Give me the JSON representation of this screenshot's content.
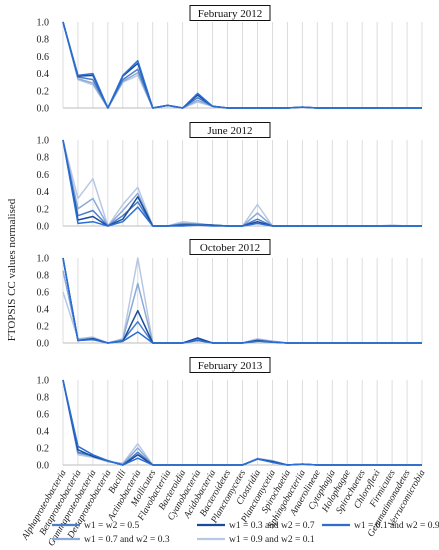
{
  "chart_data": {
    "type": "line",
    "ylabel": "FTOPSIS CC values normalised",
    "categories": [
      "Alphaproteobacteria",
      "Betaproteobacteria",
      "Gammaproteobacteria",
      "Deltaproteobacteria",
      "Bacilli",
      "Actinobacteria",
      "Mollicutes",
      "Flavobacteriia",
      "Bacteroidia",
      "Cyanobacteria",
      "Acidobacteria",
      "Bacteroidetes",
      "Planctomycetes",
      "Clostridia",
      "Planctomycetia",
      "Spirochaetia",
      "Sphingobacteriia",
      "Anaerolineae",
      "Cytophagia",
      "Holophagae",
      "Spirochaetes",
      "Chloroflexi",
      "Firmicutes",
      "Gemmatimonadetes",
      "Verrucomicrobia"
    ],
    "yticks": [
      "0.0",
      "0.2",
      "0.4",
      "0.6",
      "0.8",
      "1.0"
    ],
    "ylim": [
      0,
      1
    ],
    "grid": true,
    "legend_position": "bottom",
    "series_colors": [
      "#4a7ec8",
      "#1a4a98",
      "#2a6ed6",
      "#8aaad8",
      "#b8c8e4"
    ],
    "series_names": [
      "w1 = w2 = 0.5",
      "w1 = 0.3 and w2 = 0.7",
      "w1 = 0.1 and w2 = 0.9",
      "w1 =  0.7 and w2 = 0.3",
      "w1 = 0.9 and w2 = 0.1"
    ],
    "panels": [
      {
        "title": "February 2012",
        "series": [
          {
            "values": [
              1.0,
              0.36,
              0.33,
              0.0,
              0.33,
              0.45,
              0.0,
              0.03,
              0.0,
              0.12,
              0.02,
              0.0,
              0.0,
              0.0,
              0.0,
              0.0,
              0.01,
              0.0,
              0.0,
              0.0,
              0.0,
              0.0,
              0.0,
              0.0,
              0.0
            ]
          },
          {
            "values": [
              1.0,
              0.37,
              0.38,
              0.0,
              0.37,
              0.52,
              0.0,
              0.03,
              0.0,
              0.15,
              0.02,
              0.0,
              0.0,
              0.0,
              0.0,
              0.0,
              0.01,
              0.0,
              0.0,
              0.0,
              0.0,
              0.0,
              0.0,
              0.0,
              0.0
            ]
          },
          {
            "values": [
              1.0,
              0.38,
              0.4,
              0.0,
              0.38,
              0.55,
              0.0,
              0.03,
              0.0,
              0.17,
              0.02,
              0.0,
              0.0,
              0.0,
              0.0,
              0.0,
              0.01,
              0.0,
              0.0,
              0.0,
              0.0,
              0.0,
              0.0,
              0.0,
              0.0
            ]
          },
          {
            "values": [
              1.0,
              0.34,
              0.29,
              0.0,
              0.31,
              0.41,
              0.0,
              0.03,
              0.0,
              0.09,
              0.02,
              0.0,
              0.0,
              0.0,
              0.0,
              0.0,
              0.01,
              0.0,
              0.0,
              0.0,
              0.0,
              0.0,
              0.0,
              0.0,
              0.0
            ]
          },
          {
            "values": [
              1.0,
              0.33,
              0.27,
              0.0,
              0.3,
              0.38,
              0.0,
              0.03,
              0.0,
              0.07,
              0.02,
              0.0,
              0.0,
              0.0,
              0.0,
              0.0,
              0.01,
              0.0,
              0.0,
              0.0,
              0.0,
              0.0,
              0.0,
              0.0,
              0.0
            ]
          }
        ]
      },
      {
        "title": "June 2012",
        "series": [
          {
            "values": [
              1.0,
              0.12,
              0.18,
              0.0,
              0.12,
              0.28,
              0.0,
              0.0,
              0.02,
              0.02,
              0.01,
              0.0,
              0.0,
              0.08,
              0.0,
              0.0,
              0.0,
              0.0,
              0.0,
              0.0,
              0.0,
              0.0,
              0.0,
              0.0,
              0.0
            ]
          },
          {
            "values": [
              1.0,
              0.07,
              0.11,
              0.0,
              0.08,
              0.34,
              0.0,
              0.0,
              0.01,
              0.01,
              0.01,
              0.0,
              0.0,
              0.05,
              0.0,
              0.0,
              0.0,
              0.0,
              0.0,
              0.0,
              0.0,
              0.0,
              0.0,
              0.0,
              0.0
            ]
          },
          {
            "values": [
              1.0,
              0.03,
              0.05,
              0.0,
              0.05,
              0.22,
              0.0,
              0.0,
              0.0,
              0.01,
              0.0,
              0.0,
              0.0,
              0.03,
              0.0,
              0.0,
              0.0,
              0.0,
              0.0,
              0.0,
              0.0,
              0.0,
              0.0,
              0.0,
              0.0
            ]
          },
          {
            "values": [
              1.0,
              0.2,
              0.32,
              0.0,
              0.18,
              0.38,
              0.0,
              0.0,
              0.03,
              0.02,
              0.01,
              0.0,
              0.0,
              0.15,
              0.0,
              0.0,
              0.0,
              0.0,
              0.0,
              0.0,
              0.0,
              0.0,
              0.0,
              0.0,
              0.0
            ]
          },
          {
            "values": [
              1.0,
              0.32,
              0.55,
              0.0,
              0.25,
              0.45,
              0.0,
              0.0,
              0.05,
              0.03,
              0.01,
              0.0,
              0.0,
              0.25,
              0.0,
              0.0,
              0.0,
              0.0,
              0.0,
              0.0,
              0.0,
              0.0,
              0.01,
              0.0,
              0.0
            ]
          }
        ]
      },
      {
        "title": "October 2012",
        "series": [
          {
            "values": [
              1.0,
              0.03,
              0.05,
              0.0,
              0.03,
              0.25,
              0.0,
              0.0,
              0.0,
              0.05,
              0.0,
              0.0,
              0.0,
              0.03,
              0.01,
              0.0,
              0.0,
              0.0,
              0.0,
              0.0,
              0.0,
              0.0,
              0.0,
              0.0,
              0.0
            ]
          },
          {
            "values": [
              1.0,
              0.03,
              0.05,
              0.0,
              0.02,
              0.38,
              0.0,
              0.0,
              0.0,
              0.06,
              0.0,
              0.0,
              0.0,
              0.03,
              0.01,
              0.0,
              0.0,
              0.0,
              0.0,
              0.0,
              0.0,
              0.0,
              0.0,
              0.0,
              0.0
            ]
          },
          {
            "values": [
              1.0,
              0.03,
              0.04,
              0.0,
              0.02,
              0.13,
              0.0,
              0.0,
              0.0,
              0.03,
              0.0,
              0.0,
              0.0,
              0.02,
              0.01,
              0.0,
              0.0,
              0.0,
              0.0,
              0.0,
              0.0,
              0.0,
              0.0,
              0.0,
              0.0
            ]
          },
          {
            "values": [
              0.85,
              0.04,
              0.06,
              0.0,
              0.04,
              0.7,
              0.0,
              0.0,
              0.0,
              0.04,
              0.0,
              0.0,
              0.0,
              0.04,
              0.02,
              0.0,
              0.0,
              0.0,
              0.0,
              0.0,
              0.0,
              0.0,
              0.0,
              0.0,
              0.0
            ]
          },
          {
            "values": [
              0.6,
              0.05,
              0.07,
              0.0,
              0.05,
              1.0,
              0.0,
              0.0,
              0.0,
              0.04,
              0.0,
              0.0,
              0.0,
              0.05,
              0.02,
              0.0,
              0.0,
              0.0,
              0.0,
              0.0,
              0.0,
              0.0,
              0.0,
              0.0,
              0.0
            ]
          }
        ]
      },
      {
        "title": "February 2013",
        "series": [
          {
            "values": [
              1.0,
              0.15,
              0.11,
              0.05,
              0.0,
              0.15,
              0.0,
              0.0,
              0.0,
              0.0,
              0.0,
              0.0,
              0.0,
              0.07,
              0.04,
              0.0,
              0.01,
              0.0,
              0.0,
              0.0,
              0.0,
              0.0,
              0.0,
              0.0,
              0.0
            ]
          },
          {
            "values": [
              1.0,
              0.18,
              0.1,
              0.05,
              0.0,
              0.12,
              0.0,
              0.0,
              0.0,
              0.0,
              0.0,
              0.0,
              0.0,
              0.07,
              0.04,
              0.0,
              0.01,
              0.0,
              0.0,
              0.0,
              0.0,
              0.0,
              0.0,
              0.0,
              0.0
            ]
          },
          {
            "values": [
              1.0,
              0.22,
              0.12,
              0.05,
              0.0,
              0.08,
              0.0,
              0.0,
              0.0,
              0.0,
              0.0,
              0.0,
              0.0,
              0.07,
              0.03,
              0.0,
              0.01,
              0.0,
              0.0,
              0.0,
              0.0,
              0.0,
              0.0,
              0.0,
              0.0
            ]
          },
          {
            "values": [
              1.0,
              0.14,
              0.1,
              0.04,
              0.01,
              0.2,
              0.0,
              0.0,
              0.0,
              0.0,
              0.0,
              0.0,
              0.0,
              0.07,
              0.05,
              0.0,
              0.01,
              0.0,
              0.0,
              0.0,
              0.0,
              0.0,
              0.0,
              0.0,
              0.0
            ]
          },
          {
            "values": [
              1.0,
              0.12,
              0.09,
              0.04,
              0.02,
              0.25,
              0.0,
              0.0,
              0.0,
              0.0,
              0.0,
              0.0,
              0.0,
              0.08,
              0.05,
              0.0,
              0.01,
              0.0,
              0.0,
              0.0,
              0.0,
              0.0,
              0.0,
              0.0,
              0.0
            ]
          }
        ]
      }
    ]
  }
}
